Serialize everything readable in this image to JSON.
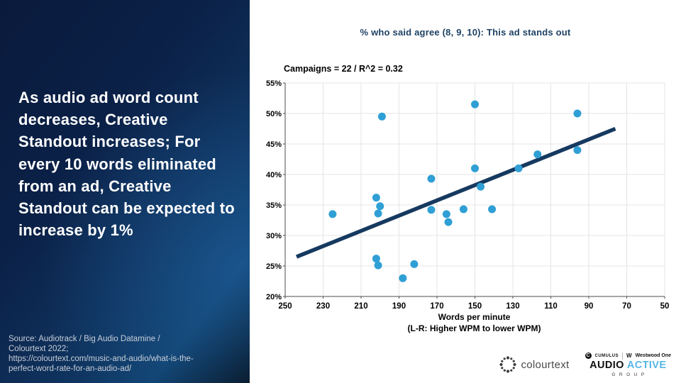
{
  "slide": {
    "headline": "As audio ad word count decreases, Creative Standout increases; For every 10 words eliminated from an ad, Creative Standout can be expected to increase by 1%",
    "source": "Source: Audiotrack / Big Audio Datamine /\nColourtext 2022;\nhttps://colourtext.com/music-and-audio/what-is-the-\nperfect-word-rate-for-an-audio-ad/"
  },
  "chart_data": {
    "type": "scatter",
    "title": "% who said agree (8, 9, 10): This ad stands out",
    "subtitle": "Campaigns = 22 / R^2 = 0.32",
    "xlabel": "Words per minute",
    "xlabel2": "(L-R: Higher WPM to lower WPM)",
    "x_axis": {
      "ticks": [
        250,
        230,
        210,
        190,
        170,
        150,
        130,
        110,
        90,
        70,
        50
      ],
      "reversed": true,
      "left_value": 250,
      "right_value": 50
    },
    "y_axis": {
      "ticks": [
        55,
        50,
        45,
        40,
        35,
        30,
        25,
        20
      ],
      "max": 55,
      "min": 20,
      "suffix": "%"
    },
    "points": [
      [
        225,
        33.5
      ],
      [
        202,
        36.2
      ],
      [
        202,
        26.2
      ],
      [
        201,
        33.6
      ],
      [
        201,
        25.1
      ],
      [
        200,
        34.8
      ],
      [
        199,
        49.5
      ],
      [
        188,
        23.0
      ],
      [
        182,
        25.3
      ],
      [
        173,
        39.3
      ],
      [
        173,
        34.2
      ],
      [
        165,
        33.5
      ],
      [
        164,
        32.2
      ],
      [
        156,
        34.3
      ],
      [
        150,
        51.5
      ],
      [
        150,
        41.0
      ],
      [
        147,
        38.0
      ],
      [
        141,
        34.3
      ],
      [
        127,
        41.0
      ],
      [
        117,
        43.3
      ],
      [
        96,
        50.0
      ],
      [
        96,
        44.0
      ]
    ],
    "trend_line": {
      "from": [
        244,
        26.5
      ],
      "to": [
        76,
        47.5
      ]
    },
    "legend": "none",
    "grid": "on",
    "colors": {
      "point": "#2f9fd5",
      "trend": "#16395f",
      "grid": "#e4e4e4",
      "axis": "#4d4d4d",
      "title": "#1e4264",
      "active_blue": "#56b7e6"
    }
  },
  "logos": {
    "colourtext": "colourtext",
    "cumulus_mark": "C",
    "cumulus": "CUMULUS",
    "westwood_mark": "W",
    "westwood": "Westwood One",
    "audio": "AUDIO",
    "active": "ACTIVE",
    "group": "GROUP"
  }
}
